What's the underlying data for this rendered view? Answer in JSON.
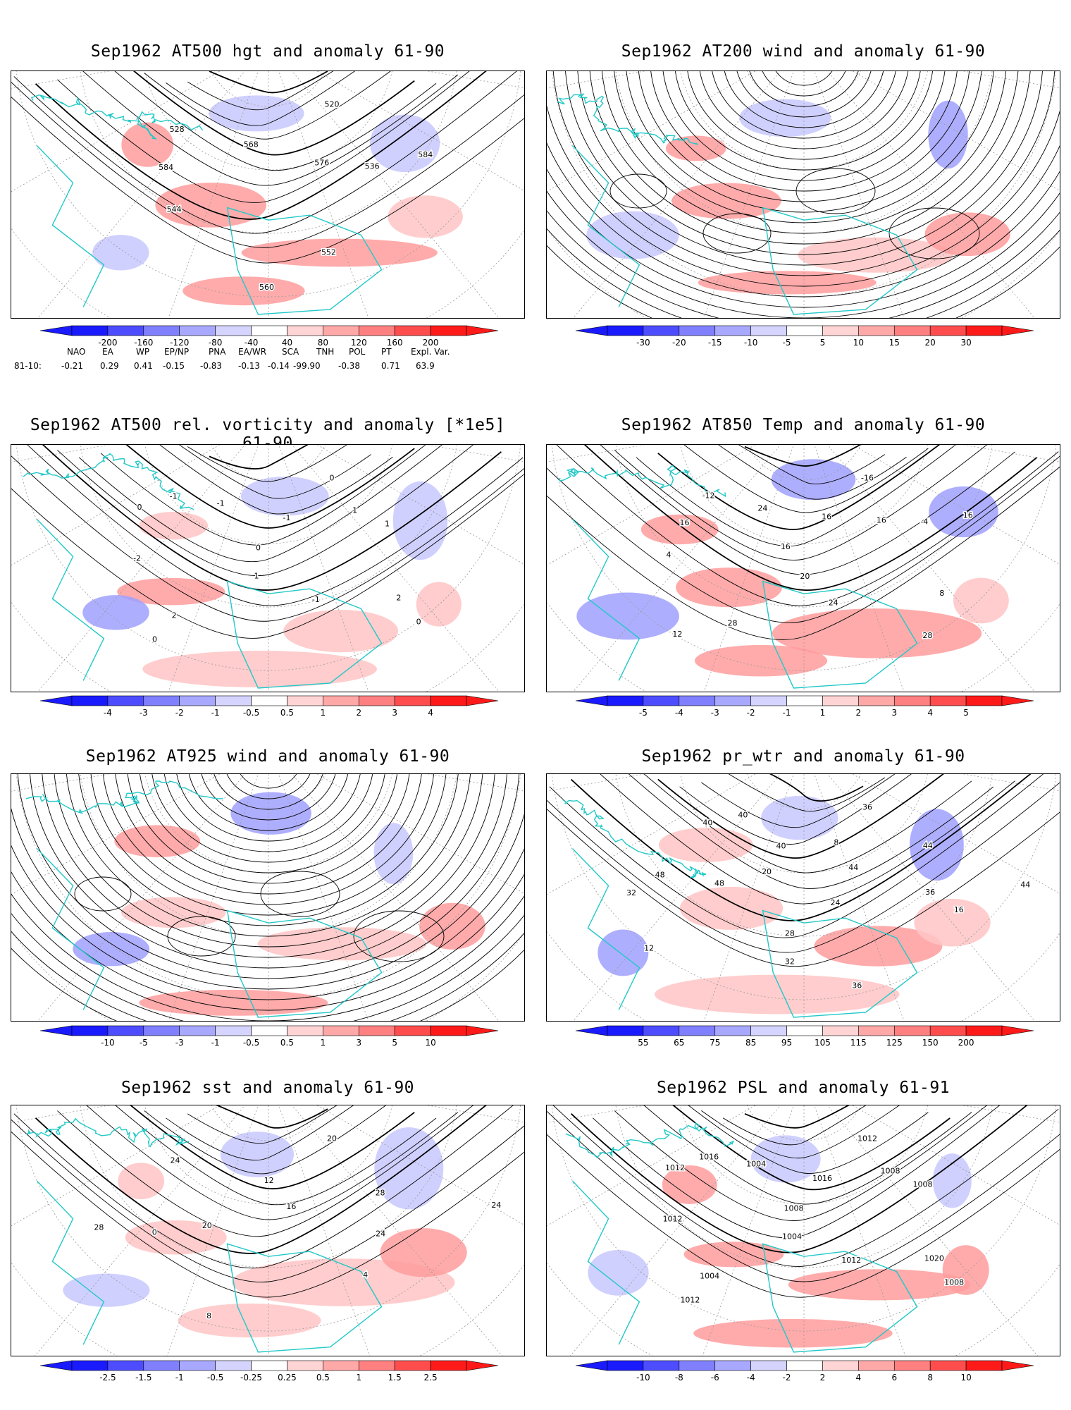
{
  "figure": {
    "background": "#ffffff",
    "coast_color": "#22c8c8",
    "contour_color": "#000000",
    "graticule_color": "#9a9a9a"
  },
  "panels": [
    {
      "title": "Sep1962 AT500 hgt and anomaly 61-90",
      "kind": "contours",
      "contour_labels": [
        "520",
        "528",
        "536",
        "544",
        "552",
        "560",
        "568",
        "576",
        "584",
        "584"
      ],
      "colorbar": {
        "labels": [
          "-200",
          "-160",
          "-120",
          "-80",
          "-40",
          "40",
          "80",
          "120",
          "160",
          "200"
        ]
      }
    },
    {
      "title": "Sep1962 AT200 wind and anomaly 61-90",
      "kind": "streamlines",
      "contour_labels": [],
      "colorbar": {
        "labels": [
          "-30",
          "-20",
          "-15",
          "-10",
          "-5",
          "5",
          "10",
          "15",
          "20",
          "30"
        ]
      }
    },
    {
      "title": "Sep1962 AT500 rel. vorticity and anomaly [*1e5] 61-90",
      "kind": "contours",
      "contour_labels": [
        "0",
        "-1",
        "1",
        "-2",
        "2",
        "0",
        "-1",
        "0",
        "1",
        "-1",
        "2",
        "0",
        "-1",
        "1",
        "0"
      ],
      "colorbar": {
        "labels": [
          "-4",
          "-3",
          "-2",
          "-1",
          "-0.5",
          "0.5",
          "1",
          "2",
          "3",
          "4"
        ]
      }
    },
    {
      "title": "Sep1962 AT850 Temp and anomaly 61-90",
      "kind": "contours",
      "contour_labels": [
        "-16",
        "-12",
        "-4",
        "4",
        "8",
        "12",
        "16",
        "16",
        "20",
        "24",
        "28",
        "28",
        "24",
        "16",
        "16",
        "16"
      ],
      "colorbar": {
        "labels": [
          "-5",
          "-4",
          "-3",
          "-2",
          "-1",
          "1",
          "2",
          "3",
          "4",
          "5"
        ]
      }
    },
    {
      "title": "Sep1962 AT925 wind and anomaly 61-90",
      "kind": "streamlines",
      "contour_labels": [],
      "colorbar": {
        "labels": [
          "-10",
          "-5",
          "-3",
          "-1",
          "-0.5",
          "0.5",
          "1",
          "3",
          "5",
          "10"
        ]
      }
    },
    {
      "title": "Sep1962 pr_wtr and anomaly 61-90",
      "kind": "contours",
      "contour_labels": [
        "36",
        "40",
        "44",
        "48",
        "16",
        "12",
        "8",
        "20",
        "24",
        "28",
        "32",
        "36",
        "40",
        "44",
        "48",
        "36",
        "32",
        "44",
        "40"
      ],
      "colorbar": {
        "labels": [
          "55",
          "65",
          "75",
          "85",
          "95",
          "105",
          "115",
          "125",
          "150",
          "200"
        ]
      }
    },
    {
      "title": "Sep1962 sst and anomaly 61-90",
      "kind": "contours",
      "contour_labels": [
        "20",
        "24",
        "28",
        "0",
        "4",
        "8",
        "12",
        "16",
        "20",
        "24",
        "28",
        "24"
      ],
      "colorbar": {
        "labels": [
          "-2.5",
          "-1.5",
          "-1",
          "-0.5",
          "-0.25",
          "0.25",
          "0.5",
          "1",
          "1.5",
          "2.5"
        ]
      }
    },
    {
      "title": "Sep1962 PSL and anomaly 61-91",
      "kind": "contours",
      "contour_labels": [
        "1012",
        "1016",
        "1008",
        "1012",
        "1020",
        "1012",
        "1016",
        "1008",
        "1004",
        "1012",
        "1004",
        "1008",
        "1004",
        "1008",
        "1012"
      ],
      "colorbar": {
        "labels": [
          "-10",
          "-8",
          "-6",
          "-4",
          "-2",
          "2",
          "4",
          "6",
          "8",
          "10"
        ]
      }
    }
  ],
  "colorbar_fills": [
    "#1a1aff",
    "#4d4dff",
    "#8080ff",
    "#a8a8ff",
    "#d4d4ff",
    "#ffffff",
    "#ffd4d4",
    "#ffa8a8",
    "#ff8080",
    "#ff4d4d",
    "#ff1a1a"
  ],
  "teleconnections": {
    "headers": [
      "NAO",
      "EA",
      "WP",
      "EP/NP",
      "PNA",
      "EA/WR",
      "SCA",
      "TNH",
      "POL",
      "PT",
      "Expl. Var."
    ],
    "row_label": "81-10:",
    "values": [
      "-0.21",
      "0.29",
      "0.41",
      "-0.15",
      "-0.83",
      "-0.13",
      "-0.14",
      "-99.90",
      "-0.38",
      "0.71",
      "63.9"
    ]
  }
}
